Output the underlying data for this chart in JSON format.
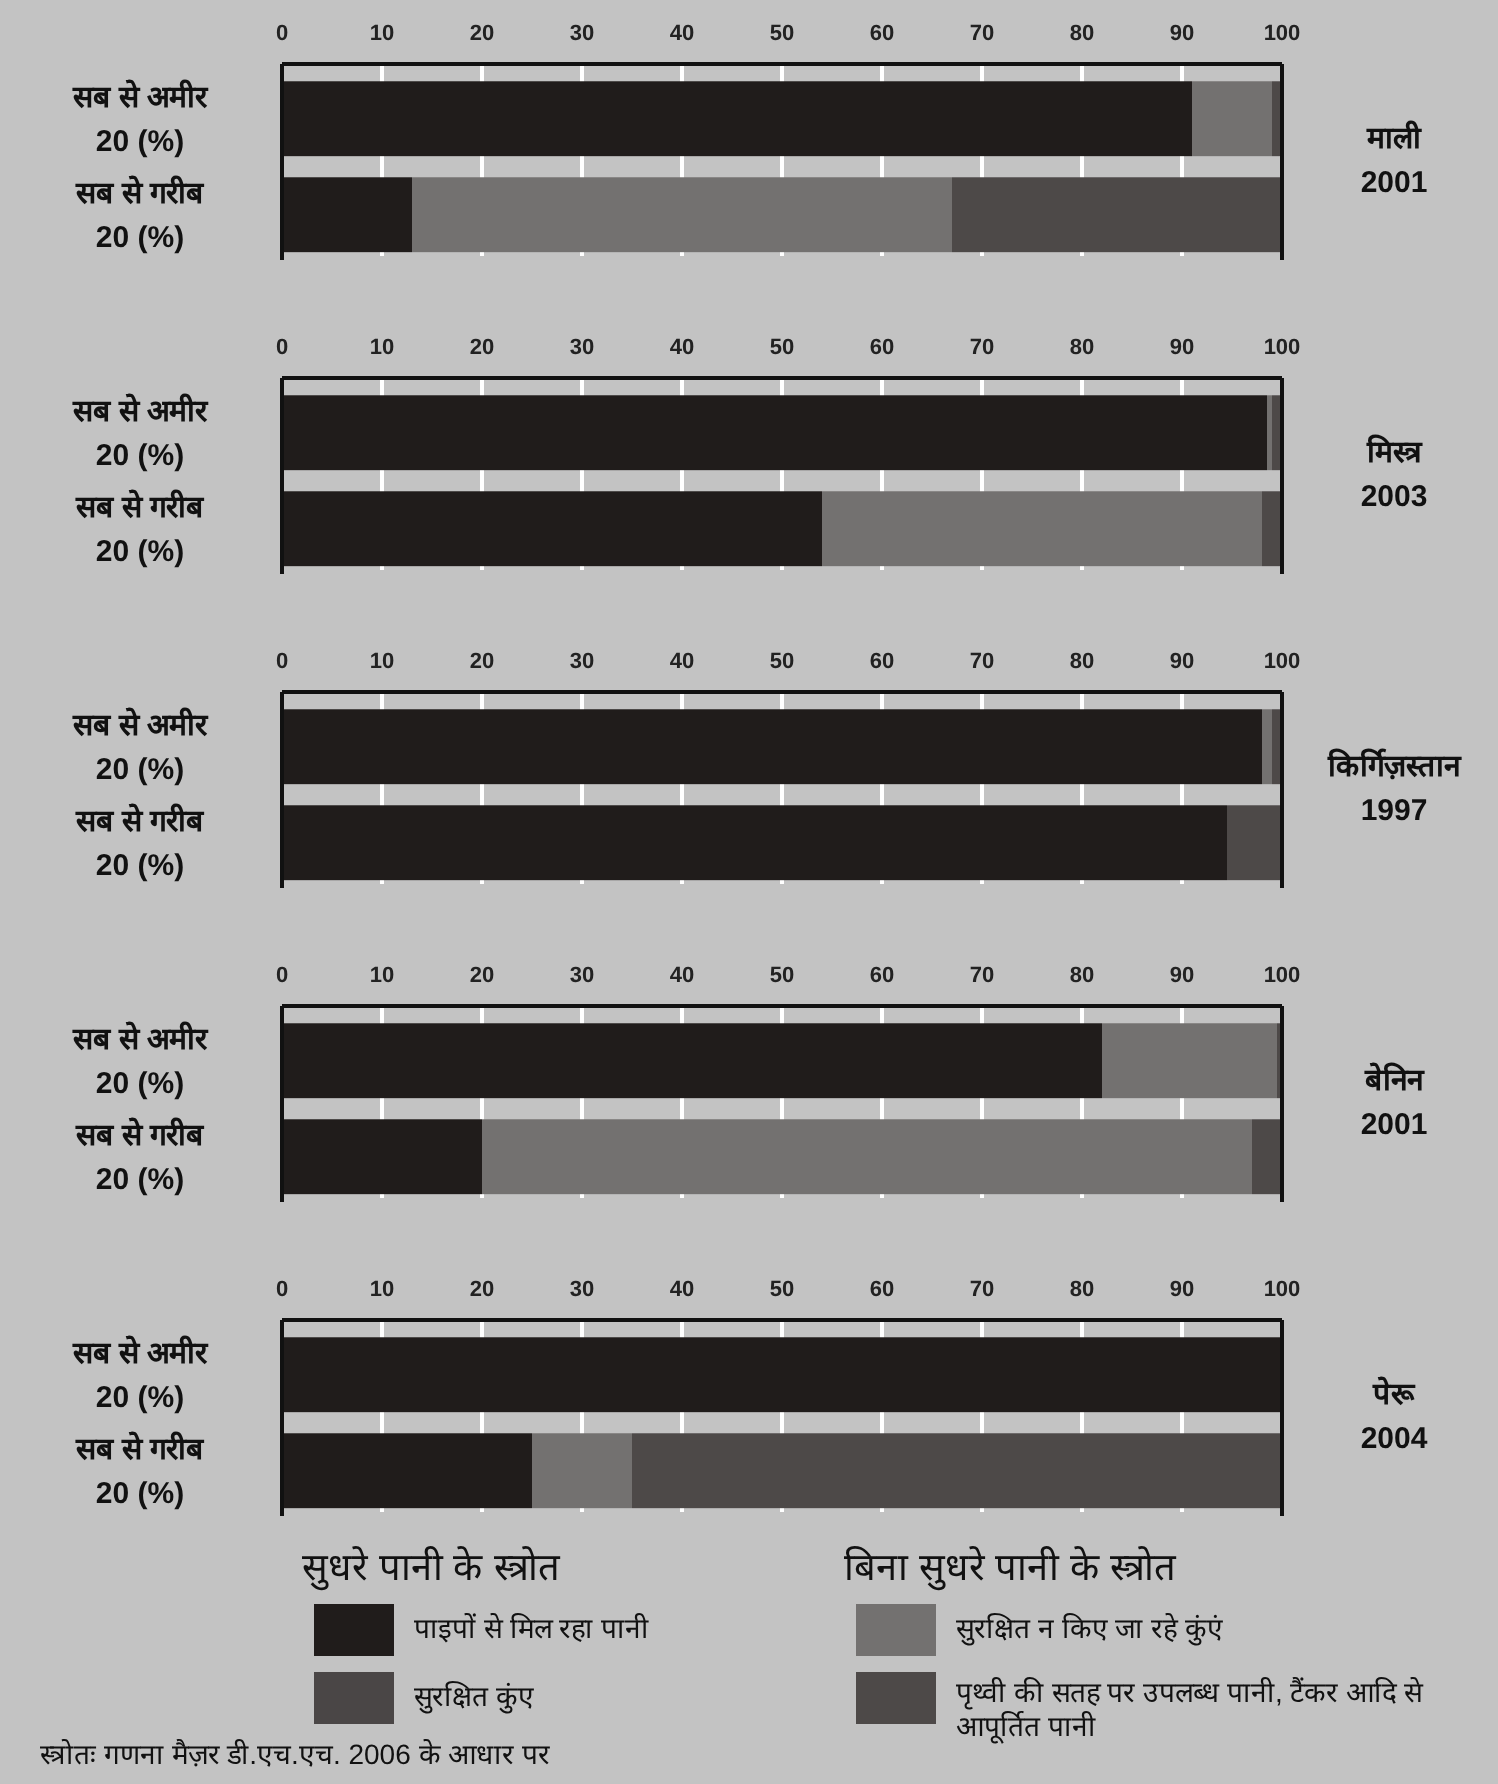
{
  "chart_data": [
    {
      "type": "bar",
      "orientation": "horizontal",
      "stacked": true,
      "y2label": "माली 2001",
      "categories": [
        "सब से अमीर 20 (%)",
        "सब से गरीब 20 (%)"
      ],
      "xlim": [
        0,
        100
      ],
      "xticks": [
        0,
        10,
        20,
        30,
        40,
        50,
        60,
        70,
        80,
        90,
        100
      ],
      "grid": "x",
      "series": [
        {
          "color": "#201c1b",
          "values": [
            91,
            13
          ]
        },
        {
          "color": "#4a4646",
          "values": [
            0,
            0
          ]
        },
        {
          "color": "#737170",
          "values": [
            8,
            54
          ]
        },
        {
          "color": "#4d4948",
          "values": [
            1,
            33
          ]
        }
      ]
    },
    {
      "type": "bar",
      "orientation": "horizontal",
      "stacked": true,
      "y2label": "मिस्त्र 2003",
      "categories": [
        "सब से अमीर 20 (%)",
        "सब से गरीब 20 (%)"
      ],
      "xlim": [
        0,
        100
      ],
      "xticks": [
        0,
        10,
        20,
        30,
        40,
        50,
        60,
        70,
        80,
        90,
        100
      ],
      "grid": "x",
      "series": [
        {
          "color": "#201c1b",
          "values": [
            98.5,
            54
          ]
        },
        {
          "color": "#4a4646",
          "values": [
            0,
            0
          ]
        },
        {
          "color": "#737170",
          "values": [
            0.5,
            44
          ]
        },
        {
          "color": "#4d4948",
          "values": [
            1,
            2
          ]
        }
      ]
    },
    {
      "type": "bar",
      "orientation": "horizontal",
      "stacked": true,
      "y2label": "किर्गिज़स्तान 1997",
      "categories": [
        "सब से अमीर 20 (%)",
        "सब से गरीब 20 (%)"
      ],
      "xlim": [
        0,
        100
      ],
      "xticks": [
        0,
        10,
        20,
        30,
        40,
        50,
        60,
        70,
        80,
        90,
        100
      ],
      "grid": "x",
      "series": [
        {
          "color": "#201c1b",
          "values": [
            98,
            94.5
          ]
        },
        {
          "color": "#4a4646",
          "values": [
            0,
            0
          ]
        },
        {
          "color": "#737170",
          "values": [
            1,
            0
          ]
        },
        {
          "color": "#4d4948",
          "values": [
            1,
            5.5
          ]
        }
      ]
    },
    {
      "type": "bar",
      "orientation": "horizontal",
      "stacked": true,
      "y2label": "बेनिन 2001",
      "categories": [
        "सब से अमीर 20 (%)",
        "सब से गरीब 20 (%)"
      ],
      "xlim": [
        0,
        100
      ],
      "xticks": [
        0,
        10,
        20,
        30,
        40,
        50,
        60,
        70,
        80,
        90,
        100
      ],
      "grid": "x",
      "series": [
        {
          "color": "#201c1b",
          "values": [
            82,
            20
          ]
        },
        {
          "color": "#4a4646",
          "values": [
            0,
            0
          ]
        },
        {
          "color": "#737170",
          "values": [
            17.5,
            77
          ]
        },
        {
          "color": "#4d4948",
          "values": [
            0.5,
            3
          ]
        }
      ]
    },
    {
      "type": "bar",
      "orientation": "horizontal",
      "stacked": true,
      "y2label": "पेरू 2004",
      "categories": [
        "सब से अमीर 20 (%)",
        "सब से गरीब 20 (%)"
      ],
      "xlim": [
        0,
        100
      ],
      "xticks": [
        0,
        10,
        20,
        30,
        40,
        50,
        60,
        70,
        80,
        90,
        100
      ],
      "grid": "x",
      "legend": "bottom",
      "series": [
        {
          "name": "पाइपों से मिल रहा पानी",
          "color": "#201c1b",
          "values": [
            100,
            25
          ]
        },
        {
          "name": "सुरक्षित कुंए",
          "color": "#4a4646",
          "values": [
            0,
            0
          ]
        },
        {
          "name": "सुरक्षित न किए जा रहे कुंएं",
          "color": "#737170",
          "values": [
            0,
            10
          ]
        },
        {
          "name": "पृथ्वी की सतह पर उपलब्ध पानी, टैंकर आदि से आपूर्तित पानी",
          "color": "#4d4948",
          "values": [
            0,
            65
          ]
        }
      ],
      "annotations": [
        "सुधरे पानी के स्त्रोत",
        "बिना सुधरे पानी के स्त्रोत",
        "स्त्रोतः गणना मैज़र डी.एच.एच. 2006 के आधार पर"
      ]
    }
  ]
}
